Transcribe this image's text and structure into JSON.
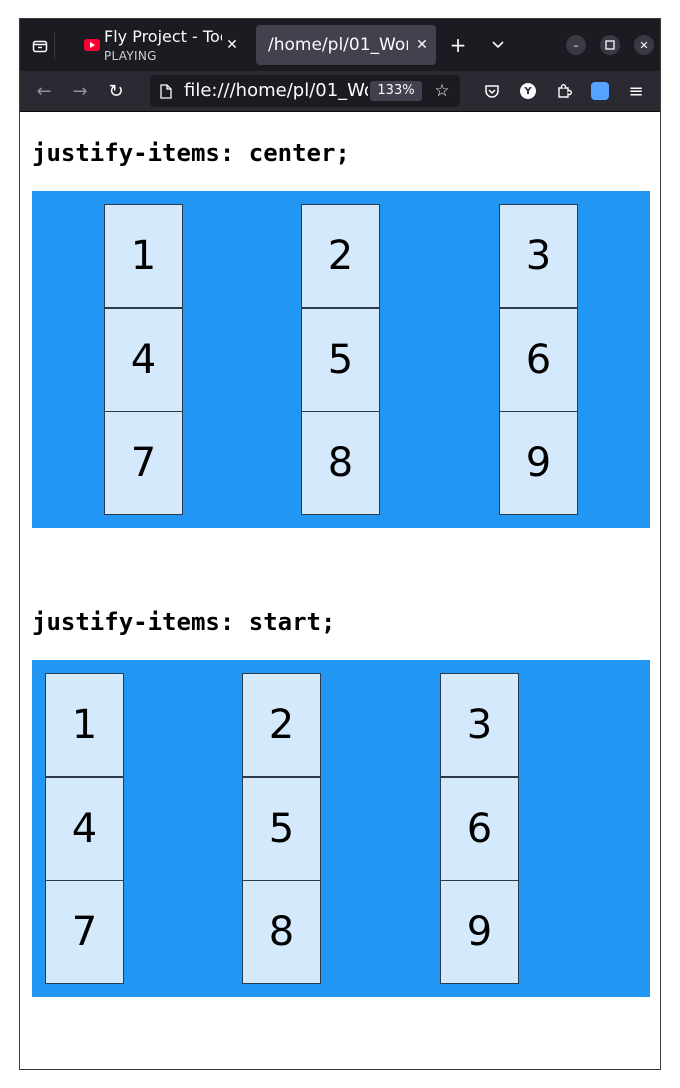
{
  "browser": {
    "tabs": [
      {
        "title": "Fly Project - Toca Toca",
        "subtitle": "PLAYING",
        "active": false
      },
      {
        "title": "/home/pl/01_Workspace",
        "subtitle": "",
        "active": true
      }
    ],
    "url": "file:///home/pl/01_Workspace",
    "zoom": "133%",
    "colors": {
      "tabbar": "#1c1b22",
      "navbar": "#2b2a33",
      "active_tab": "#42414d"
    }
  },
  "page": {
    "sections": [
      {
        "heading": "justify-items: center;",
        "items": [
          "1",
          "2",
          "3",
          "4",
          "5",
          "6",
          "7",
          "8",
          "9"
        ]
      },
      {
        "heading": "justify-items: start;",
        "items": [
          "1",
          "2",
          "3",
          "4",
          "5",
          "6",
          "7",
          "8",
          "9"
        ]
      }
    ],
    "colors": {
      "container": "#2196f3",
      "item": "#d5e9fc"
    }
  }
}
